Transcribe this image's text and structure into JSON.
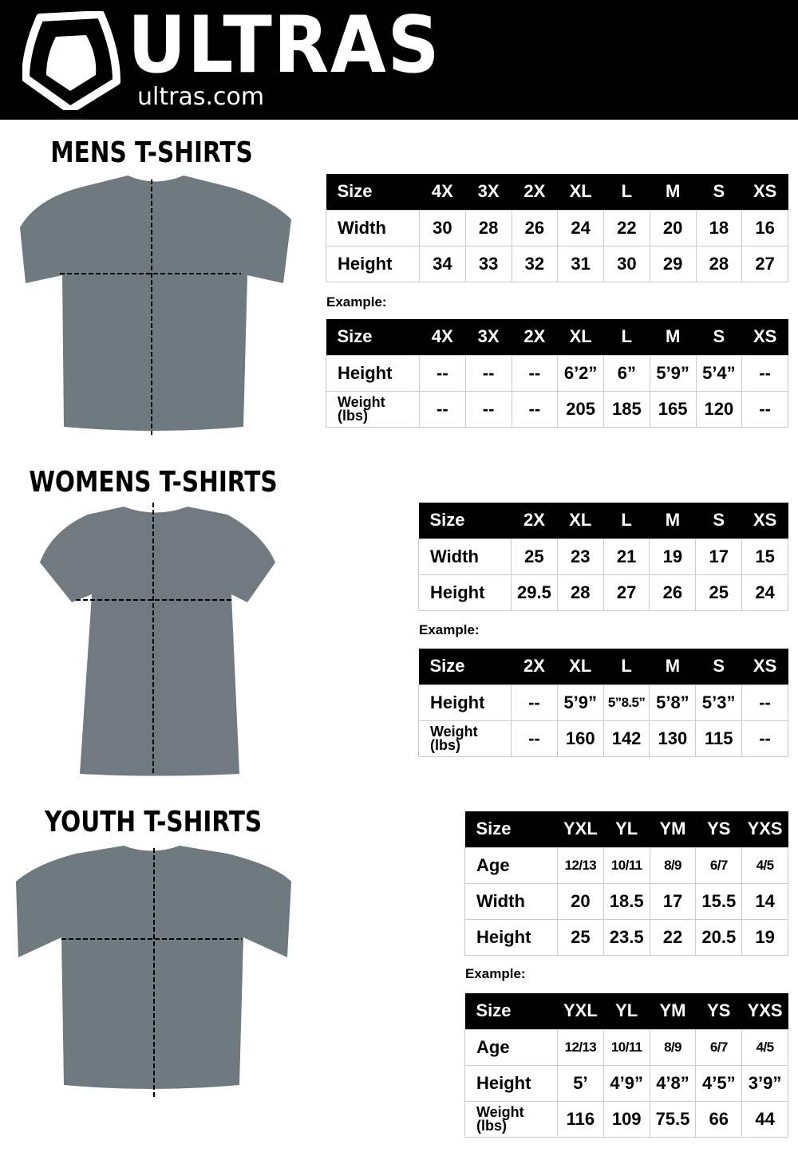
{
  "header": {
    "brand": "ULTRAS",
    "site": "ultras.com"
  },
  "sections": {
    "mens": {
      "title": "MENS T-SHIRTS",
      "example_label": "Example:",
      "size_table": {
        "header": [
          "Size",
          "4X",
          "3X",
          "2X",
          "XL",
          "L",
          "M",
          "S",
          "XS"
        ],
        "rows": [
          [
            "Width",
            "30",
            "28",
            "26",
            "24",
            "22",
            "20",
            "18",
            "16"
          ],
          [
            "Height",
            "34",
            "33",
            "32",
            "31",
            "30",
            "29",
            "28",
            "27"
          ]
        ]
      },
      "example_table": {
        "header": [
          "Size",
          "4X",
          "3X",
          "2X",
          "XL",
          "L",
          "M",
          "S",
          "XS"
        ],
        "rows": [
          [
            "Height",
            "--",
            "--",
            "--",
            "6’2”",
            "6”",
            "5’9”",
            "5’4”",
            "--"
          ],
          [
            "Weight (lbs)",
            "--",
            "--",
            "--",
            "205",
            "185",
            "165",
            "120",
            "--"
          ]
        ]
      }
    },
    "womens": {
      "title": "WOMENS T-SHIRTS",
      "example_label": "Example:",
      "size_table": {
        "header": [
          "Size",
          "2X",
          "XL",
          "L",
          "M",
          "S",
          "XS"
        ],
        "rows": [
          [
            "Width",
            "25",
            "23",
            "21",
            "19",
            "17",
            "15"
          ],
          [
            "Height",
            "29.5",
            "28",
            "27",
            "26",
            "25",
            "24"
          ]
        ]
      },
      "example_table": {
        "header": [
          "Size",
          "2X",
          "XL",
          "L",
          "M",
          "S",
          "XS"
        ],
        "rows": [
          [
            "Height",
            "--",
            "5’9”",
            "5”8.5”",
            "5’8”",
            "5’3”",
            "--"
          ],
          [
            "Weight (lbs)",
            "--",
            "160",
            "142",
            "130",
            "115",
            "--"
          ]
        ]
      }
    },
    "youth": {
      "title": "YOUTH T-SHIRTS",
      "example_label": "Example:",
      "size_table": {
        "header": [
          "Size",
          "YXL",
          "YL",
          "YM",
          "YS",
          "YXS"
        ],
        "rows": [
          [
            "Age",
            "12/13",
            "10/11",
            "8/9",
            "6/7",
            "4/5"
          ],
          [
            "Width",
            "20",
            "18.5",
            "17",
            "15.5",
            "14"
          ],
          [
            "Height",
            "25",
            "23.5",
            "22",
            "20.5",
            "19"
          ]
        ]
      },
      "example_table": {
        "header": [
          "Size",
          "YXL",
          "YL",
          "YM",
          "YS",
          "YXS"
        ],
        "rows": [
          [
            "Age",
            "12/13",
            "10/11",
            "8/9",
            "6/7",
            "4/5"
          ],
          [
            "Height",
            "5’",
            "4’9”",
            "4’8”",
            "4’5”",
            "3’9”"
          ],
          [
            "Weight (lbs)",
            "116",
            "109",
            "75.5",
            "66",
            "44"
          ]
        ]
      }
    }
  },
  "colors": {
    "header_bg": "#000000",
    "shirt": "#6f7a80"
  }
}
